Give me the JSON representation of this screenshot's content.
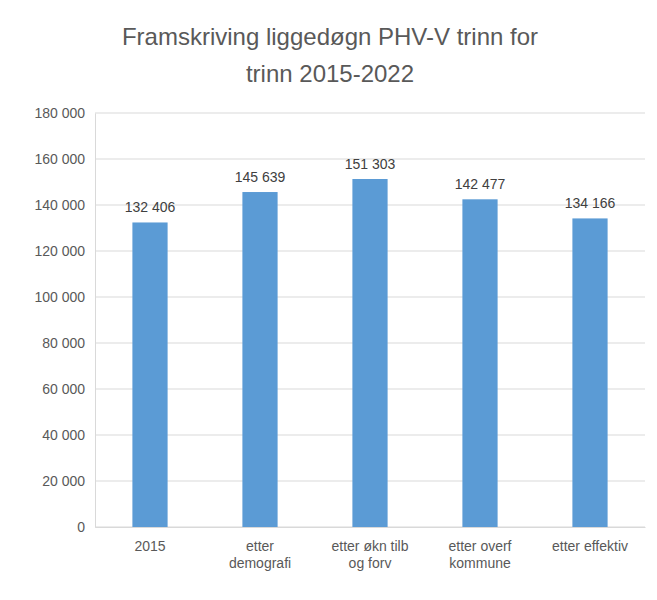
{
  "chart_data": {
    "type": "bar",
    "title": [
      "Framskriving liggedøgn PHV-V trinn for",
      "trinn 2015-2022"
    ],
    "categories": [
      "2015",
      "etter demografi",
      "etter økn tilb og forv",
      "etter overf kommune",
      "etter effektiv"
    ],
    "values": [
      132406,
      145639,
      151303,
      142477,
      134166
    ],
    "value_labels": [
      "132 406",
      "145 639",
      "151 303",
      "142 477",
      "134 166"
    ],
    "color": "#5b9bd5",
    "ylim": [
      0,
      180000
    ],
    "yticks": [
      0,
      {
        "value": 20000,
        "label": "20 000"
      },
      {
        "value": 40000,
        "label": "40 000"
      },
      {
        "value": 60000,
        "label": "60 000"
      },
      {
        "value": 80000,
        "label": "80 000"
      },
      {
        "value": 100000,
        "label": "100 000"
      },
      {
        "value": 120000,
        "label": "120 000"
      },
      {
        "value": 140000,
        "label": "140 000"
      },
      {
        "value": 160000,
        "label": "160 000"
      },
      {
        "value": 180000,
        "label": "180 000"
      }
    ],
    "grid": true,
    "data_labels": true
  }
}
